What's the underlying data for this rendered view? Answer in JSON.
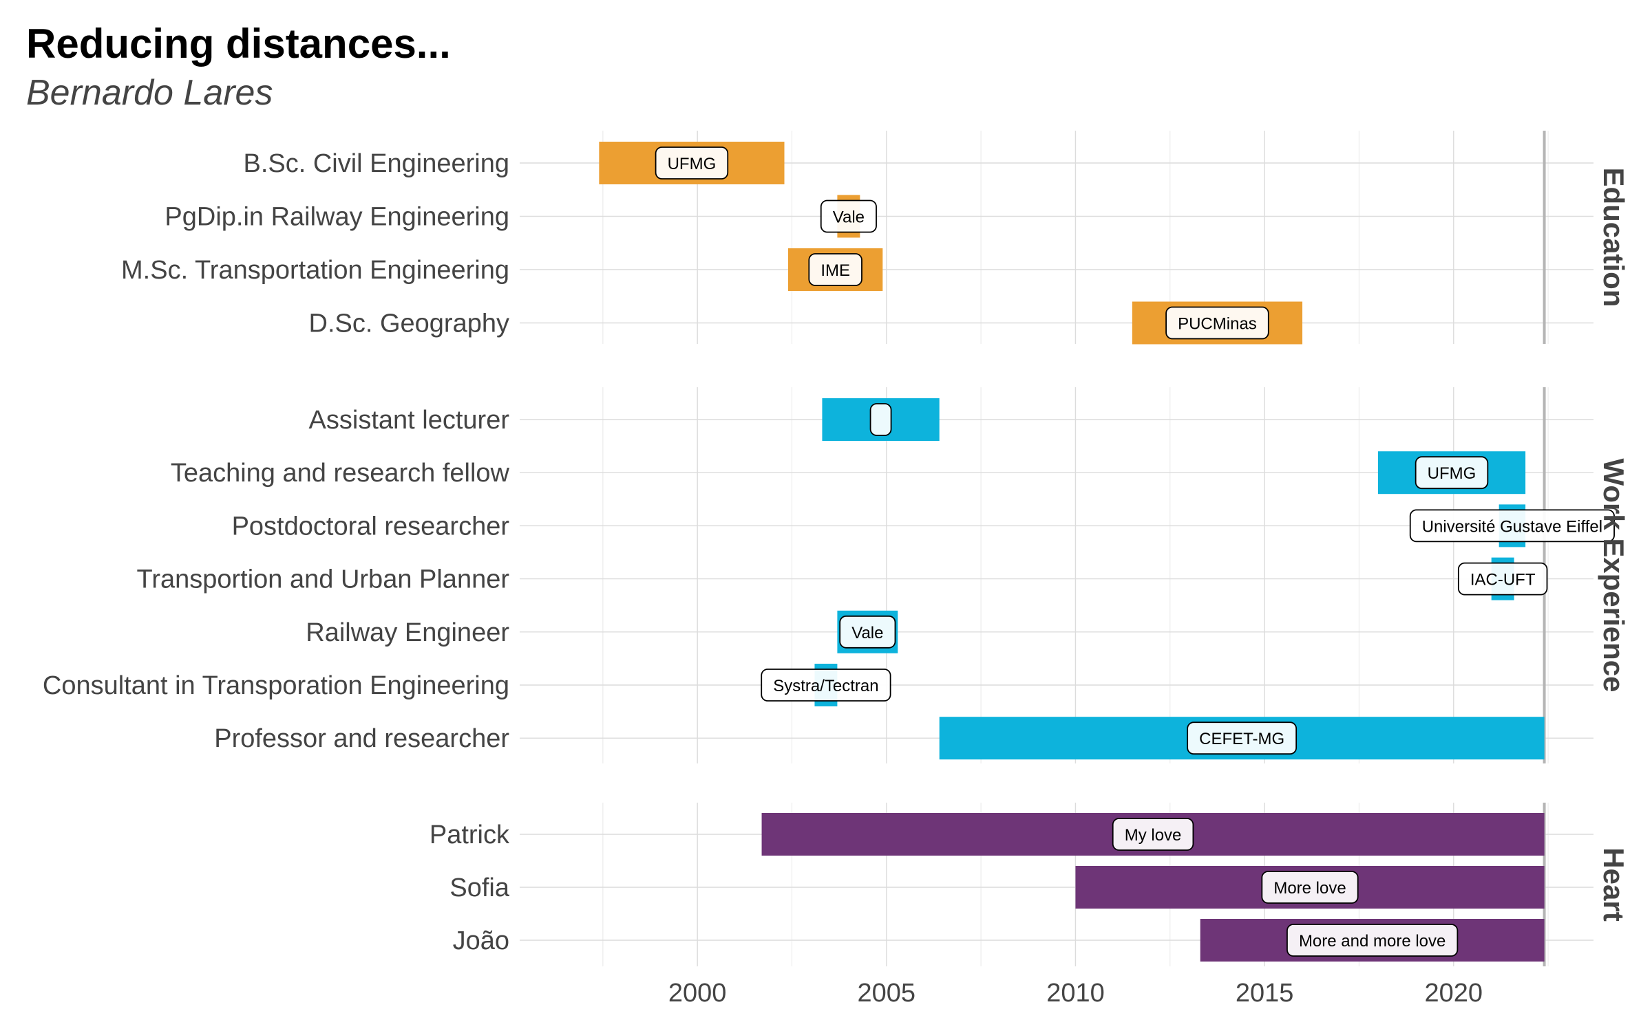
{
  "chart_data": {
    "type": "bar",
    "subtype": "timeline",
    "title": "Reducing distances...",
    "subtitle": "Bernardo Lares",
    "xlim": [
      1995.3,
      2023.7
    ],
    "xticks": [
      2000,
      2005,
      2010,
      2015,
      2020
    ],
    "today": 2022.4,
    "grid": true,
    "colors": {
      "Education": "#EC9F32",
      "Work Experience": "#0DB3DC",
      "Heart": "#6E3577"
    },
    "facets": [
      {
        "name": "Education",
        "items": [
          {
            "role": "B.Sc. Civil Engineering",
            "label": "UFMG",
            "start": 1997.4,
            "end": 2002.3
          },
          {
            "role": "PgDip.in Railway Engineering",
            "label": "Vale",
            "start": 2003.7,
            "end": 2004.3
          },
          {
            "role": "M.Sc. Transportation Engineering",
            "label": "IME",
            "start": 2002.4,
            "end": 2004.9
          },
          {
            "role": "D.Sc. Geography",
            "label": "PUCMinas",
            "start": 2011.5,
            "end": 2016.0
          }
        ]
      },
      {
        "name": "Work Experience",
        "items": [
          {
            "role": "Assistant lecturer",
            "label": "",
            "start": 2003.3,
            "end": 2006.4
          },
          {
            "role": "Teaching and research fellow",
            "label": "UFMG",
            "start": 2018.0,
            "end": 2021.9
          },
          {
            "role": "Postdoctoral researcher",
            "label": "Université Gustave Eiffel",
            "start": 2021.2,
            "end": 2021.9
          },
          {
            "role": "Transportion and Urban Planner",
            "label": "IAC-UFT",
            "start": 2021.0,
            "end": 2021.6
          },
          {
            "role": "Railway Engineer",
            "label": "Vale",
            "start": 2003.7,
            "end": 2005.3
          },
          {
            "role": "Consultant in Transporation Engineering",
            "label": "Systra/Tectran",
            "start": 2003.1,
            "end": 2003.7
          },
          {
            "role": "Professor and researcher",
            "label": "CEFET-MG",
            "start": 2006.4,
            "end": 2022.4
          }
        ]
      },
      {
        "name": "Heart",
        "items": [
          {
            "role": "Patrick",
            "label": "My love",
            "start": 2001.7,
            "end": 2022.4
          },
          {
            "role": "Sofia",
            "label": "More love",
            "start": 2010.0,
            "end": 2022.4
          },
          {
            "role": "João",
            "label": "More and more love",
            "start": 2013.3,
            "end": 2022.4
          }
        ]
      }
    ]
  }
}
